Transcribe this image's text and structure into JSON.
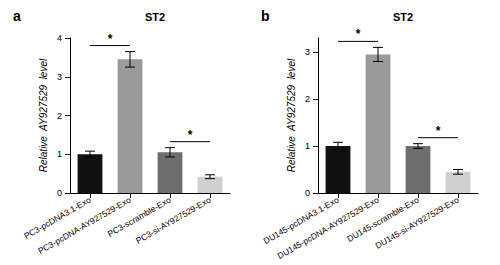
{
  "chart_data": [
    {
      "type": "bar",
      "panel": "a",
      "title": "ST2",
      "y_label": "Relative  AY927529  level",
      "categories": [
        "PC3-pcDNA3.1-Exo",
        "PC3-pcDNA-AY927529-Exo",
        "PC3-scramble-Exo",
        "PC3-si-AY927529-Exo"
      ],
      "values": [
        1.0,
        3.45,
        1.05,
        0.42
      ],
      "errors": [
        0.08,
        0.2,
        0.12,
        0.05
      ],
      "colors": [
        "#111111",
        "#9a9a9a",
        "#6e6e6e",
        "#cfcfcf"
      ],
      "ylim": [
        0,
        4
      ],
      "yticks": [
        0,
        1,
        2,
        3,
        4
      ],
      "annotations": [
        {
          "between": [
            "PC3-pcDNA3.1-Exo",
            "PC3-pcDNA-AY927529-Exo"
          ],
          "text": "*"
        },
        {
          "between": [
            "PC3-scramble-Exo",
            "PC3-si-AY927529-Exo"
          ],
          "text": "*"
        }
      ]
    },
    {
      "type": "bar",
      "panel": "b",
      "title": "ST2",
      "y_label": "Relative  AY927529  level",
      "categories": [
        "DU145-pcDNA3.1-Exo",
        "DU145-pcDNA-AY927529-Exo",
        "DU145-scramble-Exo",
        "DU145-si-AY927529-Exo"
      ],
      "values": [
        1.0,
        2.95,
        1.0,
        0.45
      ],
      "errors": [
        0.08,
        0.15,
        0.05,
        0.05
      ],
      "colors": [
        "#111111",
        "#9a9a9a",
        "#6e6e6e",
        "#cfcfcf"
      ],
      "ylim": [
        0,
        3.3
      ],
      "yticks": [
        0,
        1,
        2,
        3
      ],
      "annotations": [
        {
          "between": [
            "DU145-pcDNA3.1-Exo",
            "DU145-pcDNA-AY927529-Exo"
          ],
          "text": "*"
        },
        {
          "between": [
            "DU145-scramble-Exo",
            "DU145-si-AY927529-Exo"
          ],
          "text": "*"
        }
      ]
    }
  ]
}
